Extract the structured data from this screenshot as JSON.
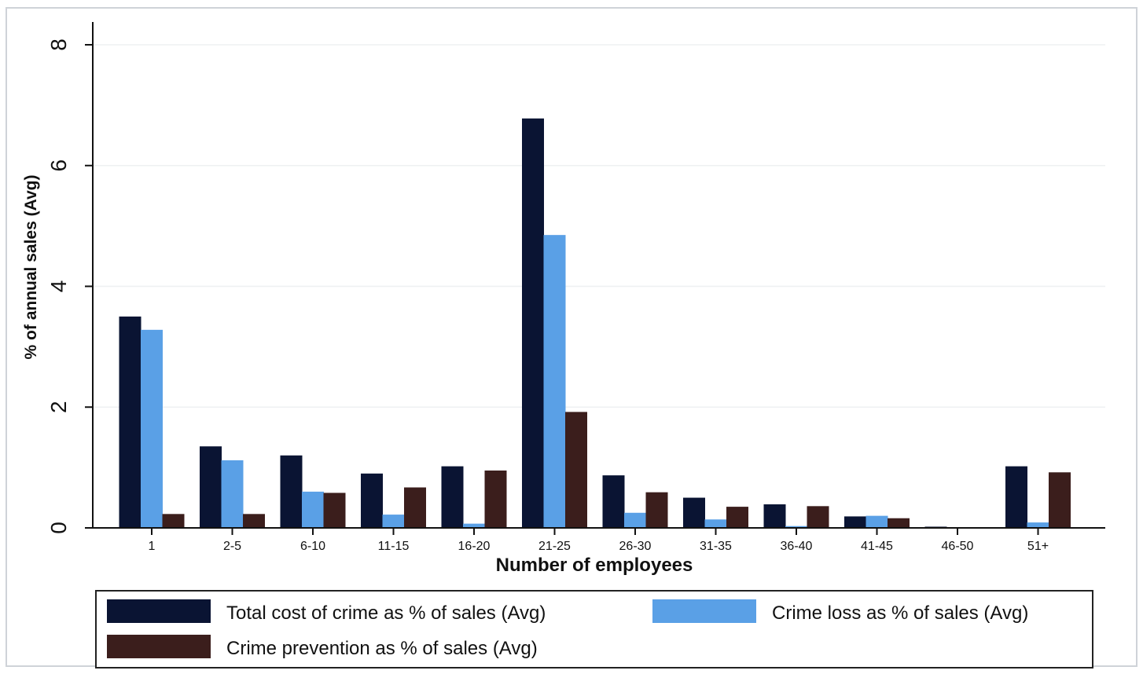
{
  "chart_data": {
    "type": "bar",
    "xlabel": "Number of employees",
    "ylabel": "% of annual sales (Avg)",
    "ylim": [
      0,
      8
    ],
    "yticks": [
      0,
      2,
      4,
      6,
      8
    ],
    "grid": true,
    "legend_position": "bottom",
    "categories": [
      "1",
      "2-5",
      "6-10",
      "11-15",
      "16-20",
      "21-25",
      "26-30",
      "31-35",
      "36-40",
      "41-45",
      "46-50",
      "51+"
    ],
    "series": [
      {
        "name": "Total cost of crime as % of sales (Avg)",
        "color": "#0a1433",
        "values": [
          3.5,
          1.35,
          1.2,
          0.9,
          1.02,
          6.78,
          0.87,
          0.5,
          0.39,
          0.19,
          0.02,
          1.02
        ]
      },
      {
        "name": "Crime loss as % of sales (Avg)",
        "color": "#5aa0e6",
        "values": [
          3.28,
          1.12,
          0.6,
          0.22,
          0.07,
          4.85,
          0.25,
          0.14,
          0.03,
          0.2,
          0.01,
          0.09
        ]
      },
      {
        "name": "Crime prevention as % of sales (Avg)",
        "color": "#3b1e1c",
        "values": [
          0.23,
          0.23,
          0.58,
          0.67,
          0.95,
          1.92,
          0.59,
          0.35,
          0.36,
          0.16,
          0.01,
          0.92
        ]
      }
    ]
  }
}
